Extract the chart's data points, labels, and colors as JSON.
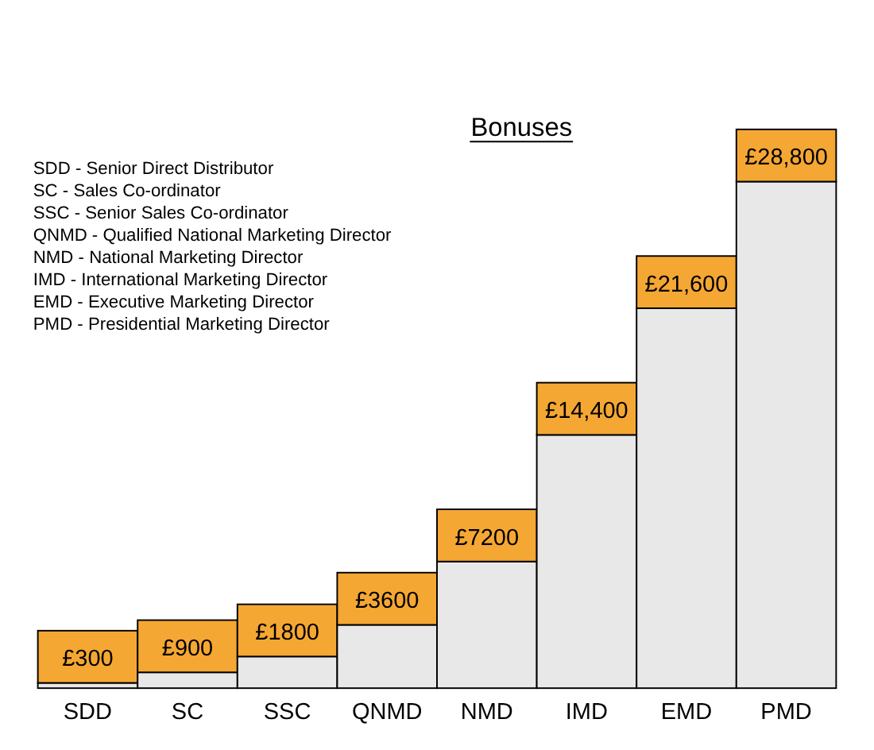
{
  "chart_data": {
    "type": "bar",
    "title": "Bonuses",
    "categories": [
      "SDD",
      "SC",
      "SSC",
      "QNMD",
      "NMD",
      "IMD",
      "EMD",
      "PMD"
    ],
    "values": [
      300,
      900,
      1800,
      3600,
      7200,
      14400,
      21600,
      28800
    ],
    "value_labels": [
      "£300",
      "£900",
      "£1800",
      "£3600",
      "£7200",
      "£14,400",
      "£21,600",
      "£28,800"
    ],
    "color": "#e8e8e8",
    "ylim": [
      0,
      28800
    ],
    "annotations": [
      "SDD - Senior Direct Distributor",
      "SC - Sales Co-ordinator",
      "SSC - Senior Sales Co-ordinator",
      "QNMD - Qualified National Marketing Director",
      "NMD - National Marketing Director",
      "IMD - International Marketing Director",
      "EMD - Executive Marketing Director",
      "PMD - Presidential Marketing Director"
    ]
  }
}
